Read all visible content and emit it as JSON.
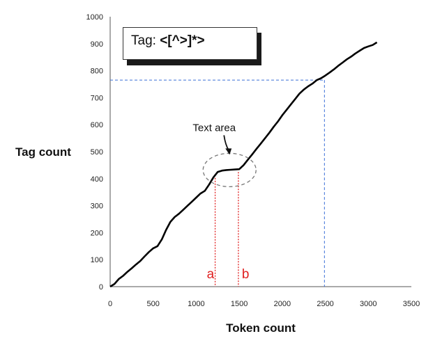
{
  "chart_data": {
    "type": "line",
    "xlabel": "Token count",
    "ylabel": "Tag count",
    "xlim": [
      0,
      3500
    ],
    "ylim": [
      0,
      1000
    ],
    "xticks": [
      0,
      500,
      1000,
      1500,
      2000,
      2500,
      3000,
      3500
    ],
    "yticks": [
      0,
      100,
      200,
      300,
      400,
      500,
      600,
      700,
      800,
      900,
      1000
    ],
    "grid": false,
    "series": [
      {
        "color": "#000000",
        "x": [
          0,
          50,
          100,
          150,
          200,
          250,
          300,
          350,
          400,
          450,
          500,
          550,
          600,
          650,
          700,
          750,
          800,
          850,
          900,
          950,
          1000,
          1050,
          1100,
          1150,
          1200,
          1250,
          1300,
          1350,
          1400,
          1450,
          1500,
          1550,
          1600,
          1650,
          1700,
          1750,
          1800,
          1850,
          1900,
          1950,
          2000,
          2050,
          2100,
          2150,
          2200,
          2250,
          2300,
          2350,
          2400,
          2450,
          2500,
          2550,
          2600,
          2650,
          2700,
          2750,
          2800,
          2850,
          2900,
          2950,
          3000,
          3050,
          3100
        ],
        "y": [
          0,
          10,
          28,
          40,
          55,
          68,
          82,
          95,
          112,
          128,
          142,
          150,
          175,
          210,
          240,
          258,
          270,
          285,
          300,
          315,
          330,
          345,
          355,
          378,
          405,
          425,
          430,
          432,
          433,
          434,
          435,
          450,
          470,
          490,
          510,
          530,
          550,
          570,
          592,
          612,
          635,
          655,
          675,
          695,
          715,
          730,
          742,
          752,
          765,
          772,
          782,
          793,
          805,
          818,
          830,
          842,
          852,
          864,
          874,
          884,
          890,
          895,
          905
        ]
      }
    ],
    "title_box": {
      "prefix": "Tag: ",
      "value": "<[^>]*>"
    },
    "annotations": {
      "text_area_label": "Text area",
      "marker_a": {
        "label": "a",
        "x": 1220,
        "color": "#e02020"
      },
      "marker_b": {
        "label": "b",
        "x": 1490,
        "color": "#e02020"
      },
      "guide_x": 2490,
      "guide_y": 765,
      "guide_color": "#3b6fd8"
    }
  }
}
